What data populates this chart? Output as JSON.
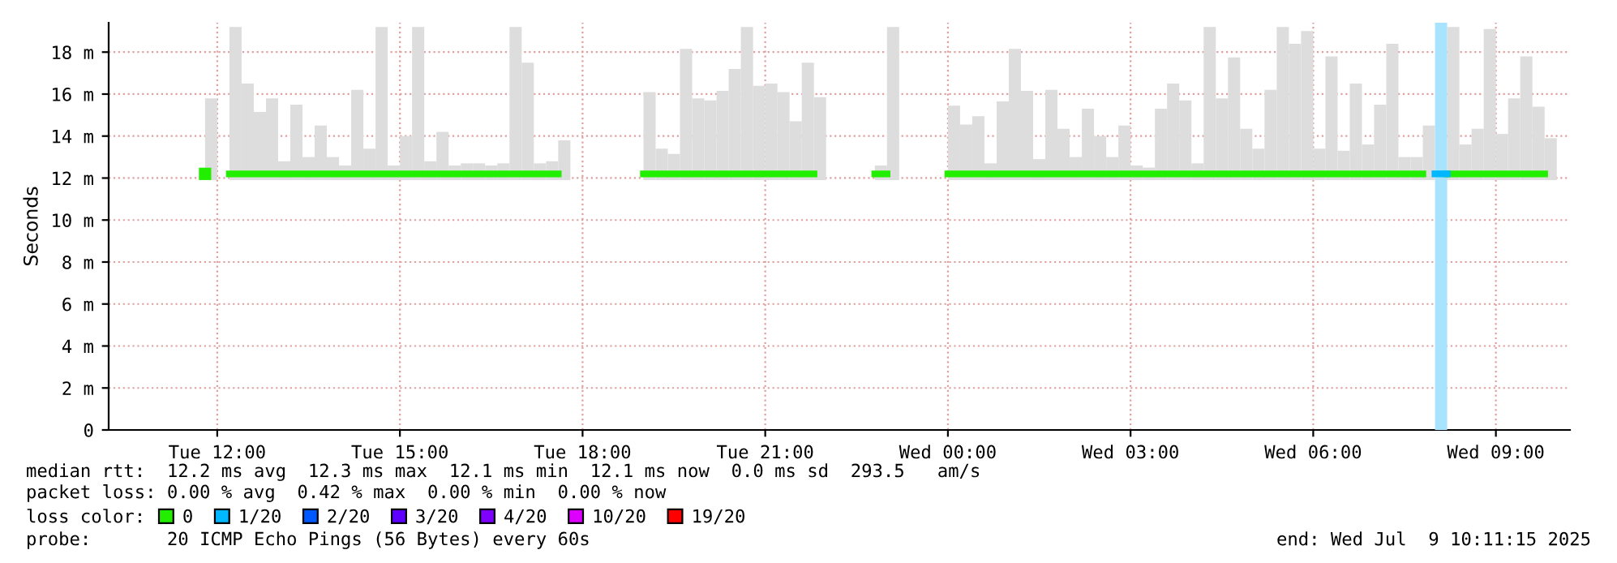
{
  "chart_data": {
    "type": "bar",
    "ylabel": "Seconds",
    "legend_title": "loss color:",
    "legend": "bottom left",
    "grid": true,
    "x": [
      "2025-07-08T11:48",
      "2025-07-08T12:00",
      "2025-07-08T12:12",
      "2025-07-08T12:24",
      "2025-07-08T12:36",
      "2025-07-08T12:48",
      "2025-07-08T13:00",
      "2025-07-08T13:12",
      "2025-07-08T13:24",
      "2025-07-08T13:36",
      "2025-07-08T13:48",
      "2025-07-08T14:00",
      "2025-07-08T14:12",
      "2025-07-08T14:24",
      "2025-07-08T14:36",
      "2025-07-08T14:48",
      "2025-07-08T15:00",
      "2025-07-08T15:12",
      "2025-07-08T15:24",
      "2025-07-08T15:36",
      "2025-07-08T15:48",
      "2025-07-08T16:00",
      "2025-07-08T16:12",
      "2025-07-08T16:24",
      "2025-07-08T16:36",
      "2025-07-08T16:48",
      "2025-07-08T17:00",
      "2025-07-08T17:12",
      "2025-07-08T17:24",
      "2025-07-08T17:36",
      "2025-07-08T17:48",
      "2025-07-08T18:00",
      "2025-07-08T18:12",
      "2025-07-08T18:24",
      "2025-07-08T18:36",
      "2025-07-08T18:48",
      "2025-07-08T19:00",
      "2025-07-08T19:12",
      "2025-07-08T19:24",
      "2025-07-08T19:36",
      "2025-07-08T19:48",
      "2025-07-08T20:00",
      "2025-07-08T20:12",
      "2025-07-08T20:24",
      "2025-07-08T20:36",
      "2025-07-08T20:48",
      "2025-07-08T21:00",
      "2025-07-08T21:12",
      "2025-07-08T21:24",
      "2025-07-08T21:36",
      "2025-07-08T21:48",
      "2025-07-08T22:00",
      "2025-07-08T22:12",
      "2025-07-08T22:24",
      "2025-07-08T22:36",
      "2025-07-08T22:48",
      "2025-07-08T23:00",
      "2025-07-08T23:12",
      "2025-07-08T23:24",
      "2025-07-08T23:36",
      "2025-07-08T23:48",
      "2025-07-09T00:00",
      "2025-07-09T00:12",
      "2025-07-09T00:24",
      "2025-07-09T00:36",
      "2025-07-09T00:48",
      "2025-07-09T01:00",
      "2025-07-09T01:12",
      "2025-07-09T01:24",
      "2025-07-09T01:36",
      "2025-07-09T01:48",
      "2025-07-09T02:00",
      "2025-07-09T02:12",
      "2025-07-09T02:24",
      "2025-07-09T02:36",
      "2025-07-09T02:48",
      "2025-07-09T03:00",
      "2025-07-09T03:12",
      "2025-07-09T03:24",
      "2025-07-09T03:36",
      "2025-07-09T03:48",
      "2025-07-09T04:00",
      "2025-07-09T04:12",
      "2025-07-09T04:24",
      "2025-07-09T04:36",
      "2025-07-09T04:48",
      "2025-07-09T05:00",
      "2025-07-09T05:12",
      "2025-07-09T05:24",
      "2025-07-09T05:36",
      "2025-07-09T05:48",
      "2025-07-09T06:00",
      "2025-07-09T06:12",
      "2025-07-09T06:24",
      "2025-07-09T06:36",
      "2025-07-09T06:48",
      "2025-07-09T07:00",
      "2025-07-09T07:12",
      "2025-07-09T07:24",
      "2025-07-09T07:36",
      "2025-07-09T07:48",
      "2025-07-09T08:00",
      "2025-07-09T08:12",
      "2025-07-09T08:24",
      "2025-07-09T08:36",
      "2025-07-09T08:48",
      "2025-07-09T09:00",
      "2025-07-09T09:12",
      "2025-07-09T09:24",
      "2025-07-09T09:36",
      "2025-07-09T09:48"
    ],
    "series": [
      {
        "color": "#dddddd",
        "base": [
          11.9,
          null,
          11.9,
          11.9,
          11.9,
          11.9,
          11.9,
          11.9,
          11.9,
          11.9,
          11.9,
          11.9,
          11.9,
          11.9,
          11.9,
          11.9,
          11.9,
          11.9,
          11.9,
          11.9,
          11.9,
          11.9,
          11.9,
          11.9,
          11.9,
          11.9,
          11.9,
          11.9,
          11.9,
          11.9,
          null,
          null,
          null,
          null,
          null,
          null,
          11.9,
          11.9,
          11.9,
          11.9,
          11.9,
          11.9,
          11.9,
          11.9,
          11.9,
          11.9,
          11.9,
          11.9,
          11.9,
          11.9,
          11.9,
          null,
          null,
          null,
          null,
          11.9,
          11.9,
          null,
          null,
          null,
          null,
          11.9,
          11.9,
          11.9,
          11.9,
          11.9,
          11.9,
          11.9,
          11.9,
          11.9,
          11.9,
          11.9,
          11.9,
          11.9,
          11.9,
          11.9,
          11.9,
          11.9,
          11.9,
          11.9,
          11.9,
          11.9,
          11.9,
          11.9,
          11.9,
          11.9,
          11.9,
          11.9,
          11.9,
          11.9,
          11.9,
          11.9,
          11.9,
          11.9,
          11.9,
          11.9,
          11.9,
          11.9,
          11.9,
          11.9,
          11.9,
          null,
          11.9,
          11.9,
          11.9,
          11.9,
          11.9,
          11.9,
          11.9,
          11.9,
          11.9
        ],
        "values": [
          3.9,
          null,
          7.3,
          4.6,
          3.25,
          3.9,
          0.9,
          3.6,
          1.1,
          2.6,
          1.1,
          0.7,
          4.3,
          1.5,
          7.3,
          0.7,
          2.1,
          7.3,
          0.9,
          2.3,
          0.7,
          0.8,
          0.8,
          0.7,
          0.8,
          7.3,
          5.6,
          0.8,
          0.9,
          1.9,
          null,
          null,
          null,
          null,
          null,
          null,
          4.2,
          1.5,
          1.25,
          6.25,
          3.9,
          3.8,
          4.25,
          5.3,
          7.3,
          4.5,
          4.6,
          4.2,
          2.8,
          5.6,
          3.95,
          null,
          null,
          null,
          null,
          0.7,
          7.3,
          null,
          null,
          null,
          null,
          3.55,
          2.65,
          3.05,
          0.8,
          3.75,
          6.25,
          4.25,
          1.0,
          4.3,
          2.45,
          1.1,
          3.4,
          2.1,
          1.1,
          2.6,
          0.7,
          0.6,
          3.4,
          4.6,
          3.8,
          0.8,
          7.3,
          3.9,
          5.85,
          2.45,
          1.5,
          4.3,
          7.3,
          6.5,
          7.1,
          1.5,
          5.9,
          1.4,
          4.6,
          1.7,
          3.6,
          6.5,
          1.1,
          1.1,
          2.6,
          null,
          7.3,
          1.7,
          2.45,
          7.2,
          2.2,
          3.9,
          5.9,
          3.5,
          2.0
        ]
      },
      {
        "type": "scatter",
        "color": "#22ee00",
        "marker": "square",
        "x": [
          "2025-07-08T11:48"
        ],
        "values": [
          12.2
        ]
      },
      {
        "type": "line",
        "name": "0",
        "color": "#22ee00",
        "values": [
          null,
          null,
          12.2,
          12.2,
          12.2,
          12.2,
          12.2,
          12.2,
          12.2,
          12.2,
          12.2,
          12.2,
          12.2,
          12.2,
          12.2,
          12.2,
          12.2,
          12.2,
          12.2,
          12.2,
          12.2,
          12.2,
          12.2,
          12.2,
          12.2,
          12.2,
          12.2,
          12.2,
          12.2,
          12.2,
          null,
          null,
          null,
          null,
          null,
          null,
          12.2,
          12.2,
          12.2,
          12.2,
          12.2,
          12.2,
          12.2,
          12.2,
          12.2,
          12.2,
          12.2,
          12.2,
          12.2,
          12.2,
          12.2,
          null,
          null,
          null,
          null,
          12.2,
          12.2,
          null,
          null,
          null,
          null,
          12.2,
          12.2,
          12.2,
          12.2,
          12.2,
          12.2,
          12.2,
          12.2,
          12.2,
          12.2,
          12.2,
          12.2,
          12.2,
          12.2,
          12.2,
          12.2,
          12.2,
          12.2,
          12.2,
          12.2,
          12.2,
          12.2,
          12.2,
          12.2,
          12.2,
          12.2,
          12.2,
          12.2,
          12.2,
          12.2,
          12.2,
          12.2,
          12.2,
          12.2,
          12.2,
          12.2,
          12.2,
          12.2,
          12.2,
          12.2,
          null,
          12.2,
          12.2,
          12.2,
          12.2,
          12.2,
          12.2,
          12.2,
          12.2,
          12.2
        ]
      },
      {
        "type": "line",
        "name": "1/20",
        "color": "#00b8ff",
        "x": [
          "2025-07-09T08:00",
          "2025-07-09T08:12"
        ],
        "values": [
          12.2,
          12.2
        ]
      },
      {
        "type": "line",
        "name": "2/20",
        "color": "#0059ff",
        "values": [
          null,
          null,
          null,
          null,
          null,
          null,
          null,
          null,
          null,
          null,
          null,
          null,
          null,
          null,
          null,
          null,
          null,
          null,
          null,
          null,
          null,
          null,
          null,
          null,
          null,
          null,
          null,
          null,
          null,
          null,
          null,
          null,
          null,
          null,
          null,
          null,
          null,
          null,
          null,
          null,
          null,
          null,
          null,
          null,
          null,
          null,
          null,
          null,
          null,
          null,
          null,
          null,
          null,
          null,
          null,
          null,
          null,
          null,
          null,
          null,
          null,
          null,
          null,
          null,
          null,
          null,
          null,
          null,
          null,
          null,
          null,
          null,
          null,
          null,
          null,
          null,
          null,
          null,
          null,
          null,
          null,
          null,
          null,
          null,
          null,
          null,
          null,
          null,
          null,
          null,
          null,
          null,
          null,
          null,
          null,
          null,
          null,
          null,
          null,
          null,
          null,
          null,
          null,
          null,
          null,
          null,
          null,
          null,
          null,
          null,
          null
        ]
      },
      {
        "type": "line",
        "name": "3/20",
        "color": "#5e00ff",
        "values": [
          null,
          null,
          null,
          null,
          null,
          null,
          null,
          null,
          null,
          null,
          null,
          null,
          null,
          null,
          null,
          null,
          null,
          null,
          null,
          null,
          null,
          null,
          null,
          null,
          null,
          null,
          null,
          null,
          null,
          null,
          null,
          null,
          null,
          null,
          null,
          null,
          null,
          null,
          null,
          null,
          null,
          null,
          null,
          null,
          null,
          null,
          null,
          null,
          null,
          null,
          null,
          null,
          null,
          null,
          null,
          null,
          null,
          null,
          null,
          null,
          null,
          null,
          null,
          null,
          null,
          null,
          null,
          null,
          null,
          null,
          null,
          null,
          null,
          null,
          null,
          null,
          null,
          null,
          null,
          null,
          null,
          null,
          null,
          null,
          null,
          null,
          null,
          null,
          null,
          null,
          null,
          null,
          null,
          null,
          null,
          null,
          null,
          null,
          null,
          null,
          null,
          null,
          null,
          null,
          null,
          null,
          null,
          null,
          null,
          null,
          null
        ]
      },
      {
        "type": "line",
        "name": "4/20",
        "color": "#7e00ff",
        "values": [
          null,
          null,
          null,
          null,
          null,
          null,
          null,
          null,
          null,
          null,
          null,
          null,
          null,
          null,
          null,
          null,
          null,
          null,
          null,
          null,
          null,
          null,
          null,
          null,
          null,
          null,
          null,
          null,
          null,
          null,
          null,
          null,
          null,
          null,
          null,
          null,
          null,
          null,
          null,
          null,
          null,
          null,
          null,
          null,
          null,
          null,
          null,
          null,
          null,
          null,
          null,
          null,
          null,
          null,
          null,
          null,
          null,
          null,
          null,
          null,
          null,
          null,
          null,
          null,
          null,
          null,
          null,
          null,
          null,
          null,
          null,
          null,
          null,
          null,
          null,
          null,
          null,
          null,
          null,
          null,
          null,
          null,
          null,
          null,
          null,
          null,
          null,
          null,
          null,
          null,
          null,
          null,
          null,
          null,
          null,
          null,
          null,
          null,
          null,
          null,
          null,
          null,
          null,
          null,
          null,
          null,
          null,
          null,
          null,
          null,
          null
        ]
      },
      {
        "type": "line",
        "name": "10/20",
        "color": "#dd00ff",
        "values": [
          null,
          null,
          null,
          null,
          null,
          null,
          null,
          null,
          null,
          null,
          null,
          null,
          null,
          null,
          null,
          null,
          null,
          null,
          null,
          null,
          null,
          null,
          null,
          null,
          null,
          null,
          null,
          null,
          null,
          null,
          null,
          null,
          null,
          null,
          null,
          null,
          null,
          null,
          null,
          null,
          null,
          null,
          null,
          null,
          null,
          null,
          null,
          null,
          null,
          null,
          null,
          null,
          null,
          null,
          null,
          null,
          null,
          null,
          null,
          null,
          null,
          null,
          null,
          null,
          null,
          null,
          null,
          null,
          null,
          null,
          null,
          null,
          null,
          null,
          null,
          null,
          null,
          null,
          null,
          null,
          null,
          null,
          null,
          null,
          null,
          null,
          null,
          null,
          null,
          null,
          null,
          null,
          null,
          null,
          null,
          null,
          null,
          null,
          null,
          null,
          null,
          null,
          null,
          null,
          null,
          null,
          null,
          null,
          null,
          null,
          null
        ]
      },
      {
        "type": "line",
        "name": "19/20",
        "color": "#ff0000",
        "values": [
          null,
          null,
          null,
          null,
          null,
          null,
          null,
          null,
          null,
          null,
          null,
          null,
          null,
          null,
          null,
          null,
          null,
          null,
          null,
          null,
          null,
          null,
          null,
          null,
          null,
          null,
          null,
          null,
          null,
          null,
          null,
          null,
          null,
          null,
          null,
          null,
          null,
          null,
          null,
          null,
          null,
          null,
          null,
          null,
          null,
          null,
          null,
          null,
          null,
          null,
          null,
          null,
          null,
          null,
          null,
          null,
          null,
          null,
          null,
          null,
          null,
          null,
          null,
          null,
          null,
          null,
          null,
          null,
          null,
          null,
          null,
          null,
          null,
          null,
          null,
          null,
          null,
          null,
          null,
          null,
          null,
          null,
          null,
          null,
          null,
          null,
          null,
          null,
          null,
          null,
          null,
          null,
          null,
          null,
          null,
          null,
          null,
          null,
          null,
          null,
          null,
          null,
          null,
          null,
          null,
          null,
          null,
          null,
          null,
          null,
          null
        ]
      }
    ],
    "bands": [
      {
        "axis": "x",
        "from": "2025-07-09T08:00",
        "to": "2025-07-09T08:12",
        "color": "#a8e4ff"
      }
    ],
    "xlim": [
      "2025-07-08T10:13",
      "2025-07-09T10:13"
    ],
    "xticks": [
      {
        "value": "2025-07-08T12:00",
        "label": "Tue 12:00"
      },
      {
        "value": "2025-07-08T15:00",
        "label": "Tue 15:00"
      },
      {
        "value": "2025-07-08T18:00",
        "label": "Tue 18:00"
      },
      {
        "value": "2025-07-08T21:00",
        "label": "Tue 21:00"
      },
      {
        "value": "2025-07-09T00:00",
        "label": "Wed 00:00"
      },
      {
        "value": "2025-07-09T03:00",
        "label": "Wed 03:00"
      },
      {
        "value": "2025-07-09T06:00",
        "label": "Wed 06:00"
      },
      {
        "value": "2025-07-09T09:00",
        "label": "Wed 09:00"
      }
    ],
    "ylim": [
      0,
      19.4
    ],
    "yticks": [
      0,
      {
        "value": 2,
        "label": "2 m"
      },
      {
        "value": 4,
        "label": "4 m"
      },
      {
        "value": 6,
        "label": "6 m"
      },
      {
        "value": 8,
        "label": "8 m"
      },
      {
        "value": 10,
        "label": "10 m"
      },
      {
        "value": 12,
        "label": "12 m"
      },
      {
        "value": 14,
        "label": "14 m"
      },
      {
        "value": 16,
        "label": "16 m"
      },
      {
        "value": 18,
        "label": "18 m"
      }
    ],
    "annotations": [
      "median rtt:  12.2 ms avg  12.3 ms max  12.1 ms min  12.1 ms now  0.0 ms sd  293.5   am/s",
      "packet loss: 0.00 % avg  0.42 % max  0.00 % min  0.00 % now",
      "probe:       20 ICMP Echo Pings (56 Bytes) every 60s",
      "end: Wed Jul  9 10:11:15 2025"
    ]
  }
}
